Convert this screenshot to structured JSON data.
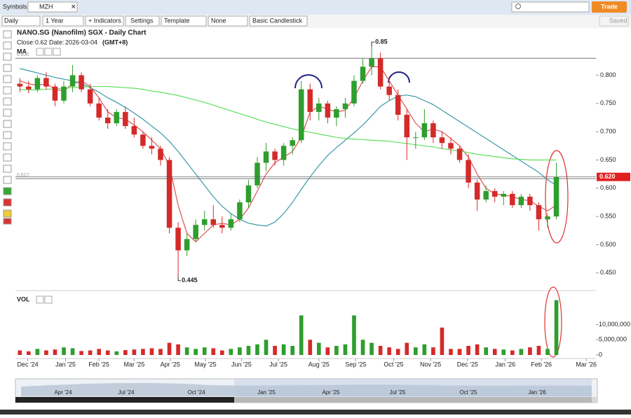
{
  "toolbar": {
    "symbols_label": "Symbols:",
    "symbol": "MZH",
    "trade": "Trade",
    "saved": "Saved",
    "interval": "Daily",
    "range": "1 Year",
    "indicators": "+ Indicators",
    "settings": "Settings",
    "template": "Template",
    "overlay": "None",
    "chart_style": "Basic Candlestick"
  },
  "chart_data": [
    {
      "type": "candlestick",
      "title": "NANO.SG (Nanofilm) SGX - Daily Chart",
      "close_label": "Close:",
      "close_value": 0.62,
      "date_label": "Date:",
      "date": "2026-03-04",
      "timezone": "(GMT+8)",
      "indicator_label": "MA",
      "xlim": [
        0,
        66
      ],
      "xticks": [
        {
          "value": 1.4,
          "label": "Dec '24"
        },
        {
          "value": 5.7,
          "label": "Jan '25"
        },
        {
          "value": 9.5,
          "label": "Feb '25"
        },
        {
          "value": 13.5,
          "label": "Mar '25"
        },
        {
          "value": 17.6,
          "label": "Apr '25"
        },
        {
          "value": 21.6,
          "label": "May '25"
        },
        {
          "value": 25.7,
          "label": "Jun '25"
        },
        {
          "value": 29.9,
          "label": "Jul '25"
        },
        {
          "value": 34.5,
          "label": "Aug '25"
        },
        {
          "value": 38.7,
          "label": "Sep '25"
        },
        {
          "value": 43.0,
          "label": "Oct '25"
        },
        {
          "value": 47.2,
          "label": "Nov '25"
        },
        {
          "value": 51.4,
          "label": "Dec '25"
        },
        {
          "value": 55.7,
          "label": "Jan '26"
        },
        {
          "value": 59.8,
          "label": "Feb '26"
        },
        {
          "value": 64.9,
          "label": "Mar '26"
        }
      ],
      "ylim": [
        0.425,
        0.865
      ],
      "yticks": [
        {
          "value": 0.45,
          "label": "0.450"
        },
        {
          "value": 0.5,
          "label": "0.500"
        },
        {
          "value": 0.55,
          "label": "0.550"
        },
        {
          "value": 0.6,
          "label": "0.600"
        },
        {
          "value": 0.65,
          "label": "0.650"
        },
        {
          "value": 0.7,
          "label": "0.700"
        },
        {
          "value": 0.75,
          "label": "0.750"
        },
        {
          "value": 0.8,
          "label": "0.800"
        }
      ],
      "up_color": "#2e9e2e",
      "down_color": "#d42a2a",
      "open": [
        0.785,
        0.78,
        0.775,
        0.795,
        0.78,
        0.755,
        0.78,
        0.8,
        0.775,
        0.75,
        0.725,
        0.715,
        0.735,
        0.71,
        0.695,
        0.675,
        0.67,
        0.65,
        0.53,
        0.49,
        0.51,
        0.535,
        0.545,
        0.535,
        0.53,
        0.545,
        0.575,
        0.605,
        0.645,
        0.665,
        0.65,
        0.675,
        0.685,
        0.775,
        0.735,
        0.75,
        0.725,
        0.74,
        0.75,
        0.79,
        0.815,
        0.83,
        0.78,
        0.765,
        0.73,
        0.69,
        0.69,
        0.715,
        0.69,
        0.68,
        0.67,
        0.65,
        0.61,
        0.58,
        0.595,
        0.585,
        0.59,
        0.57,
        0.585,
        0.57,
        0.545,
        0.55
      ],
      "high": [
        0.795,
        0.79,
        0.8,
        0.805,
        0.785,
        0.79,
        0.818,
        0.805,
        0.785,
        0.76,
        0.74,
        0.74,
        0.745,
        0.725,
        0.7,
        0.69,
        0.675,
        0.655,
        0.54,
        0.52,
        0.545,
        0.56,
        0.57,
        0.55,
        0.555,
        0.58,
        0.615,
        0.655,
        0.68,
        0.67,
        0.68,
        0.69,
        0.79,
        0.785,
        0.76,
        0.755,
        0.745,
        0.76,
        0.8,
        0.83,
        0.85,
        0.84,
        0.79,
        0.775,
        0.74,
        0.7,
        0.74,
        0.72,
        0.7,
        0.69,
        0.675,
        0.66,
        0.615,
        0.605,
        0.6,
        0.595,
        0.595,
        0.59,
        0.59,
        0.575,
        0.555,
        0.645
      ],
      "low": [
        0.77,
        0.768,
        0.77,
        0.775,
        0.745,
        0.75,
        0.77,
        0.77,
        0.745,
        0.72,
        0.705,
        0.71,
        0.705,
        0.69,
        0.67,
        0.66,
        0.64,
        0.52,
        0.445,
        0.48,
        0.505,
        0.525,
        0.53,
        0.52,
        0.525,
        0.54,
        0.565,
        0.6,
        0.63,
        0.64,
        0.64,
        0.66,
        0.68,
        0.72,
        0.72,
        0.715,
        0.71,
        0.725,
        0.745,
        0.785,
        0.8,
        0.775,
        0.755,
        0.72,
        0.65,
        0.67,
        0.685,
        0.68,
        0.67,
        0.66,
        0.645,
        0.6,
        0.56,
        0.575,
        0.575,
        0.57,
        0.565,
        0.565,
        0.56,
        0.525,
        0.53,
        0.545
      ],
      "close": [
        0.78,
        0.775,
        0.795,
        0.78,
        0.755,
        0.78,
        0.8,
        0.775,
        0.75,
        0.725,
        0.715,
        0.735,
        0.71,
        0.695,
        0.675,
        0.67,
        0.65,
        0.53,
        0.49,
        0.51,
        0.535,
        0.545,
        0.535,
        0.53,
        0.545,
        0.575,
        0.605,
        0.645,
        0.665,
        0.65,
        0.675,
        0.685,
        0.775,
        0.735,
        0.75,
        0.725,
        0.74,
        0.75,
        0.79,
        0.815,
        0.83,
        0.78,
        0.765,
        0.73,
        0.69,
        0.69,
        0.715,
        0.69,
        0.68,
        0.67,
        0.65,
        0.61,
        0.58,
        0.595,
        0.585,
        0.59,
        0.57,
        0.585,
        0.57,
        0.545,
        0.55,
        0.62
      ],
      "lines": [
        {
          "color": "#e05050",
          "values": [
            0.79,
            0.785,
            0.782,
            0.785,
            0.775,
            0.772,
            0.785,
            0.79,
            0.78,
            0.76,
            0.735,
            0.725,
            0.722,
            0.712,
            0.7,
            0.685,
            0.67,
            0.64,
            0.57,
            0.52,
            0.505,
            0.52,
            0.535,
            0.538,
            0.535,
            0.545,
            0.565,
            0.595,
            0.625,
            0.645,
            0.655,
            0.665,
            0.69,
            0.735,
            0.745,
            0.74,
            0.735,
            0.738,
            0.76,
            0.79,
            0.815,
            0.815,
            0.79,
            0.765,
            0.74,
            0.715,
            0.7,
            0.705,
            0.7,
            0.688,
            0.675,
            0.655,
            0.625,
            0.6,
            0.59,
            0.588,
            0.585,
            0.58,
            0.578,
            0.568,
            0.56,
            0.57
          ]
        },
        {
          "color": "#3a9aa8",
          "values": [
            0.812,
            0.808,
            0.804,
            0.8,
            0.796,
            0.793,
            0.79,
            0.785,
            0.778,
            0.77,
            0.76,
            0.752,
            0.743,
            0.733,
            0.722,
            0.71,
            0.698,
            0.683,
            0.665,
            0.645,
            0.625,
            0.605,
            0.585,
            0.568,
            0.555,
            0.545,
            0.538,
            0.535,
            0.533,
            0.54,
            0.555,
            0.575,
            0.598,
            0.62,
            0.64,
            0.658,
            0.672,
            0.685,
            0.698,
            0.712,
            0.728,
            0.745,
            0.755,
            0.763,
            0.765,
            0.762,
            0.755,
            0.748,
            0.738,
            0.728,
            0.718,
            0.708,
            0.698,
            0.688,
            0.678,
            0.668,
            0.658,
            0.648,
            0.638,
            0.628,
            0.615,
            0.605
          ]
        },
        {
          "color": "#5ee05e",
          "values": [
            0.775,
            0.774,
            0.774,
            0.775,
            0.776,
            0.777,
            0.778,
            0.779,
            0.78,
            0.78,
            0.78,
            0.779,
            0.778,
            0.777,
            0.775,
            0.772,
            0.77,
            0.767,
            0.764,
            0.76,
            0.756,
            0.752,
            0.747,
            0.742,
            0.737,
            0.732,
            0.727,
            0.722,
            0.717,
            0.713,
            0.709,
            0.705,
            0.702,
            0.699,
            0.696,
            0.693,
            0.69,
            0.688,
            0.687,
            0.686,
            0.685,
            0.684,
            0.683,
            0.681,
            0.679,
            0.677,
            0.675,
            0.673,
            0.67,
            0.668,
            0.666,
            0.663,
            0.66,
            0.658,
            0.656,
            0.654,
            0.652,
            0.651,
            0.65,
            0.65,
            0.65,
            0.65
          ]
        }
      ],
      "reference_lines": [
        {
          "value": 0.83,
          "label": "0.830"
        },
        {
          "value": 0.617,
          "label": "0.617"
        }
      ],
      "last_price": {
        "value": 0.62,
        "label": "0.620",
        "color": "#e02020"
      },
      "annotations": [
        {
          "text": "0.85",
          "value": 0.85,
          "x": 40
        },
        {
          "text": "0.445",
          "value": 0.445,
          "x": 18
        }
      ]
    },
    {
      "type": "bar",
      "indicator_label": "VOL",
      "ylim": [
        0,
        20000000
      ],
      "yticks": [
        0,
        {
          "value": 5000000,
          "label": "5,000,000"
        },
        {
          "value": 10000000,
          "label": "10,000,000"
        }
      ],
      "values": [
        1500000,
        1200000,
        2000000,
        1500000,
        1800000,
        2500000,
        2200000,
        1300000,
        1500000,
        2000000,
        1500000,
        1200000,
        1600000,
        1800000,
        2000000,
        2200000,
        2000000,
        4000000,
        3500000,
        2500000,
        2000000,
        2500000,
        2200000,
        1500000,
        2000000,
        2500000,
        3000000,
        3500000,
        5000000,
        3000000,
        3500000,
        3000000,
        13000000,
        5000000,
        4000000,
        2500000,
        3000000,
        3500000,
        13000000,
        5000000,
        4000000,
        3000000,
        2500000,
        2000000,
        4000000,
        2500000,
        3500000,
        2500000,
        9000000,
        2000000,
        2000000,
        3000000,
        3500000,
        2500000,
        2000000,
        1800000,
        1500000,
        2000000,
        2500000,
        3000000,
        2000000,
        18000000
      ]
    }
  ],
  "navigator": {
    "labels": [
      "Apr '24",
      "Jul '24",
      "Oct '24",
      "Jan '25",
      "Apr '25",
      "Jul '25",
      "Oct '25",
      "Jan '26"
    ]
  }
}
